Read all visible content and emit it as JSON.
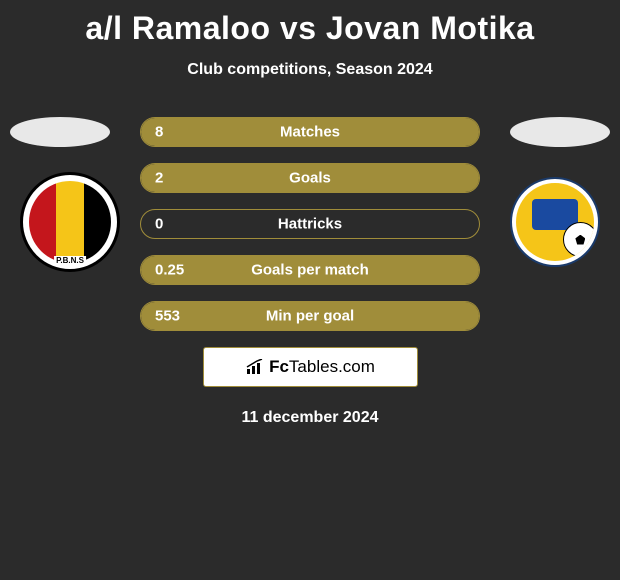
{
  "title": "a/l Ramaloo vs Jovan Motika",
  "subtitle": "Club competitions, Season 2024",
  "date": "11 december 2024",
  "footer_brand_prefix": "Fc",
  "footer_brand_suffix": "Tables.com",
  "colors": {
    "bar_fill": "#a08d3a",
    "bar_border": "#a08d3a",
    "background": "#2b2b2b",
    "text": "#ffffff",
    "avatar_oval": "#e8e8e8",
    "footer_bg": "#ffffff"
  },
  "stats": [
    {
      "left_value": "8",
      "label": "Matches",
      "left_pct": 100
    },
    {
      "left_value": "2",
      "label": "Goals",
      "left_pct": 100
    },
    {
      "left_value": "0",
      "label": "Hattricks",
      "left_pct": 0
    },
    {
      "left_value": "0.25",
      "label": "Goals per match",
      "left_pct": 100
    },
    {
      "left_value": "553",
      "label": "Min per goal",
      "left_pct": 100
    }
  ],
  "badges": {
    "left_label": "P.B.N.S"
  }
}
